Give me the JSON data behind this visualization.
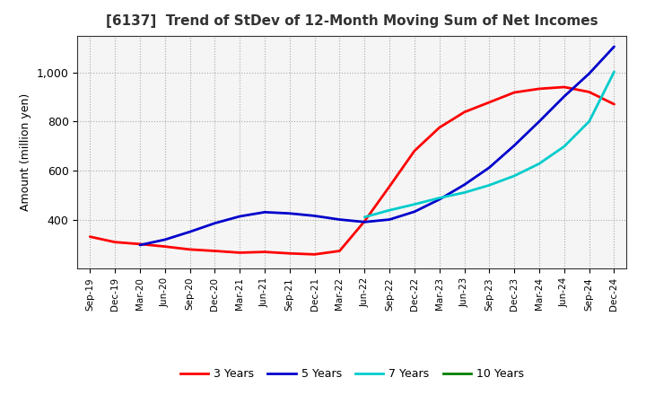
{
  "title": "[6137]  Trend of StDev of 12-Month Moving Sum of Net Incomes",
  "ylabel": "Amount (million yen)",
  "background_color": "#ffffff",
  "plot_bg_color": "#f5f5f5",
  "grid_color": "#999999",
  "x_labels": [
    "Sep-19",
    "Dec-19",
    "Mar-20",
    "Jun-20",
    "Sep-20",
    "Dec-20",
    "Mar-21",
    "Jun-21",
    "Sep-21",
    "Dec-21",
    "Mar-22",
    "Jun-22",
    "Sep-22",
    "Dec-22",
    "Mar-23",
    "Jun-23",
    "Sep-23",
    "Dec-23",
    "Mar-24",
    "Jun-24",
    "Sep-24",
    "Dec-24"
  ],
  "ylim": [
    200,
    1150
  ],
  "ytick_vals": [
    400,
    600,
    800,
    1000
  ],
  "series": {
    "3 Years": {
      "color": "#ff0000",
      "linewidth": 2.0,
      "data_x": [
        0,
        1,
        2,
        3,
        4,
        5,
        6,
        7,
        8,
        9,
        10,
        11,
        12,
        13,
        14,
        15,
        16,
        17,
        18,
        19,
        20,
        21
      ],
      "data_y": [
        330,
        308,
        300,
        290,
        278,
        272,
        265,
        268,
        262,
        258,
        272,
        393,
        535,
        680,
        775,
        838,
        878,
        918,
        933,
        940,
        920,
        870
      ]
    },
    "5 Years": {
      "color": "#0000cc",
      "linewidth": 2.0,
      "data_x": [
        2,
        3,
        4,
        5,
        6,
        7,
        8,
        9,
        10,
        11,
        12,
        13,
        14,
        15,
        16,
        17,
        18,
        19,
        20,
        21
      ],
      "data_y": [
        296,
        318,
        350,
        385,
        413,
        430,
        425,
        415,
        400,
        390,
        400,
        432,
        482,
        542,
        612,
        702,
        800,
        902,
        995,
        1105
      ]
    },
    "7 Years": {
      "color": "#00cccc",
      "linewidth": 2.0,
      "data_x": [
        11,
        12,
        13,
        14,
        15,
        16,
        17,
        18,
        19,
        20,
        21
      ],
      "data_y": [
        410,
        438,
        462,
        488,
        510,
        540,
        578,
        628,
        698,
        800,
        1002
      ]
    },
    "10 Years": {
      "color": "#008000",
      "linewidth": 2.0,
      "data_x": [],
      "data_y": []
    }
  },
  "legend_order": [
    "3 Years",
    "5 Years",
    "7 Years",
    "10 Years"
  ],
  "legend_colors": [
    "#ff0000",
    "#0000cc",
    "#00cccc",
    "#008000"
  ]
}
